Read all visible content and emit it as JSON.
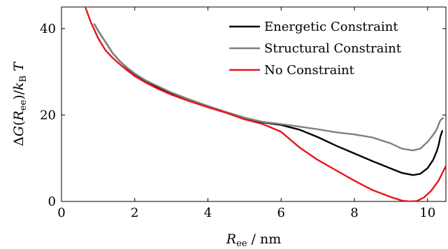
{
  "chart_data": {
    "type": "line",
    "title": "",
    "xlabel": "R_ee / nm",
    "ylabel": "ΔG(R_ee)/k_B T",
    "xlim": [
      0,
      10.5
    ],
    "ylim": [
      0,
      45
    ],
    "xticks": [
      0,
      2,
      4,
      6,
      8,
      10
    ],
    "yticks": [
      0,
      20,
      40
    ],
    "grid": false,
    "legend_position": "top-right",
    "series": [
      {
        "name": "Energetic Constraint",
        "color": "#000000",
        "x": [
          0.9,
          1.0,
          1.2,
          1.4,
          1.6,
          1.8,
          2.0,
          2.3,
          2.6,
          3.0,
          3.5,
          4.0,
          4.5,
          5.0,
          5.5,
          6.0,
          6.5,
          7.0,
          7.5,
          8.0,
          8.5,
          9.0,
          9.3,
          9.6,
          9.8,
          10.0,
          10.15,
          10.25,
          10.3,
          10.35,
          10.4
        ],
        "y": [
          41.0,
          39.5,
          36.9,
          34.3,
          32.4,
          30.8,
          29.5,
          27.9,
          26.6,
          25.0,
          23.4,
          21.9,
          20.6,
          19.3,
          18.3,
          17.7,
          16.6,
          14.9,
          12.9,
          11.1,
          9.3,
          7.6,
          6.6,
          6.1,
          6.4,
          7.7,
          9.6,
          11.6,
          13.0,
          15.0,
          16.3
        ]
      },
      {
        "name": "Structural Constraint",
        "color": "#808080",
        "x": [
          0.9,
          1.0,
          1.2,
          1.4,
          1.6,
          1.8,
          2.0,
          2.3,
          2.6,
          3.0,
          3.5,
          4.0,
          4.5,
          5.0,
          5.5,
          6.0,
          6.5,
          7.0,
          7.5,
          8.0,
          8.5,
          9.0,
          9.3,
          9.6,
          9.8,
          10.0,
          10.15,
          10.25,
          10.3,
          10.35,
          10.42
        ],
        "y": [
          41.0,
          39.5,
          36.9,
          34.3,
          32.4,
          30.9,
          29.6,
          28.0,
          26.8,
          25.2,
          23.6,
          22.1,
          20.7,
          19.4,
          18.4,
          17.9,
          17.3,
          16.7,
          16.0,
          15.5,
          14.8,
          13.4,
          12.2,
          11.8,
          12.2,
          13.8,
          15.4,
          16.7,
          17.8,
          18.8,
          19.3
        ]
      },
      {
        "name": "No Constraint",
        "color": "#e8141c",
        "x": [
          0.65,
          0.8,
          1.0,
          1.2,
          1.4,
          1.6,
          1.8,
          2.0,
          2.3,
          2.6,
          3.0,
          3.5,
          4.0,
          4.5,
          5.0,
          5.5,
          6.0,
          6.5,
          7.0,
          7.5,
          8.0,
          8.5,
          9.0,
          9.3,
          9.5,
          9.7,
          9.9,
          10.1,
          10.3,
          10.5
        ],
        "y": [
          45.0,
          41.5,
          37.8,
          35.0,
          33.2,
          31.7,
          30.3,
          29.0,
          27.5,
          26.2,
          24.7,
          23.2,
          21.8,
          20.5,
          19.0,
          17.9,
          16.1,
          12.5,
          9.6,
          7.2,
          4.8,
          2.6,
          1.0,
          0.2,
          0.0,
          0.1,
          0.9,
          2.5,
          4.8,
          8.2
        ]
      }
    ]
  }
}
